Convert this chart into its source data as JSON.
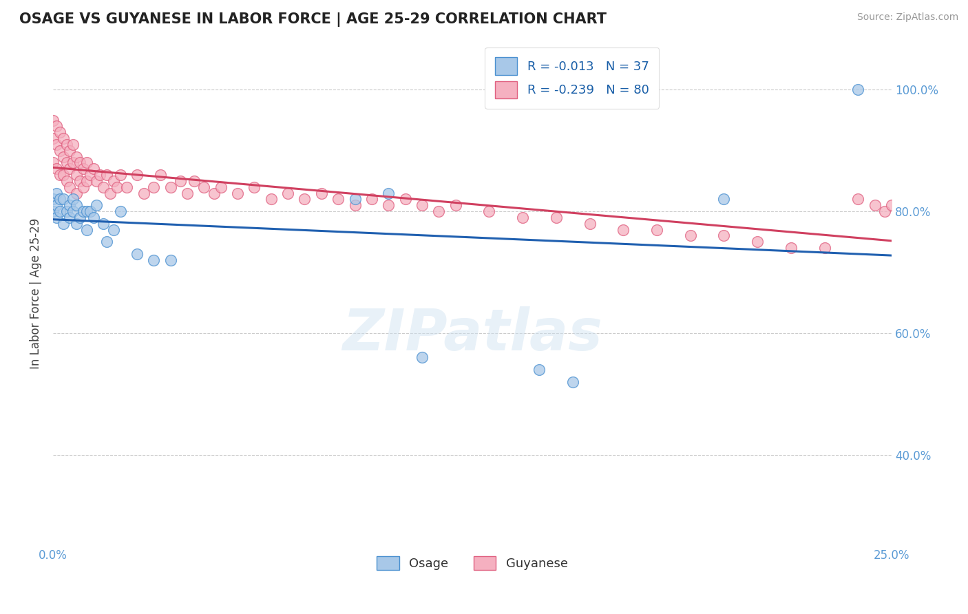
{
  "title": "OSAGE VS GUYANESE IN LABOR FORCE | AGE 25-29 CORRELATION CHART",
  "source": "Source: ZipAtlas.com",
  "ylabel": "In Labor Force | Age 25-29",
  "xlim": [
    0.0,
    0.25
  ],
  "ylim": [
    0.25,
    1.08
  ],
  "ytick_labels": [
    "40.0%",
    "60.0%",
    "80.0%",
    "100.0%"
  ],
  "ytick_values": [
    0.4,
    0.6,
    0.8,
    1.0
  ],
  "legend_r_osage": "R = -0.013",
  "legend_n_osage": "N = 37",
  "legend_r_guyanese": "R = -0.239",
  "legend_n_guyanese": "N = 80",
  "osage_color": "#a8c8e8",
  "guyanese_color": "#f5b0c0",
  "osage_edge_color": "#4a90d0",
  "guyanese_edge_color": "#e06080",
  "osage_line_color": "#2060b0",
  "guyanese_line_color": "#d04060",
  "watermark": "ZIPatlas",
  "osage_x": [
    0.0,
    0.0,
    0.001,
    0.001,
    0.001,
    0.002,
    0.002,
    0.003,
    0.003,
    0.004,
    0.005,
    0.005,
    0.006,
    0.006,
    0.007,
    0.007,
    0.008,
    0.009,
    0.01,
    0.01,
    0.011,
    0.012,
    0.013,
    0.015,
    0.016,
    0.018,
    0.02,
    0.025,
    0.03,
    0.035,
    0.09,
    0.1,
    0.11,
    0.145,
    0.155,
    0.2,
    0.24
  ],
  "osage_y": [
    0.8,
    0.82,
    0.81,
    0.79,
    0.83,
    0.8,
    0.82,
    0.78,
    0.82,
    0.8,
    0.81,
    0.79,
    0.8,
    0.82,
    0.78,
    0.81,
    0.79,
    0.8,
    0.77,
    0.8,
    0.8,
    0.79,
    0.81,
    0.78,
    0.75,
    0.77,
    0.8,
    0.73,
    0.72,
    0.72,
    0.82,
    0.83,
    0.56,
    0.54,
    0.52,
    0.82,
    1.0
  ],
  "guyanese_x": [
    0.0,
    0.0,
    0.0,
    0.001,
    0.001,
    0.001,
    0.002,
    0.002,
    0.002,
    0.003,
    0.003,
    0.003,
    0.004,
    0.004,
    0.004,
    0.005,
    0.005,
    0.005,
    0.006,
    0.006,
    0.007,
    0.007,
    0.007,
    0.008,
    0.008,
    0.009,
    0.009,
    0.01,
    0.01,
    0.011,
    0.012,
    0.013,
    0.014,
    0.015,
    0.016,
    0.017,
    0.018,
    0.019,
    0.02,
    0.022,
    0.025,
    0.027,
    0.03,
    0.032,
    0.035,
    0.038,
    0.04,
    0.042,
    0.045,
    0.048,
    0.05,
    0.055,
    0.06,
    0.065,
    0.07,
    0.075,
    0.08,
    0.085,
    0.09,
    0.095,
    0.1,
    0.105,
    0.11,
    0.115,
    0.12,
    0.13,
    0.14,
    0.15,
    0.16,
    0.17,
    0.18,
    0.19,
    0.2,
    0.21,
    0.22,
    0.23,
    0.24,
    0.245,
    0.248,
    0.25
  ],
  "guyanese_y": [
    0.95,
    0.92,
    0.88,
    0.94,
    0.91,
    0.87,
    0.93,
    0.9,
    0.86,
    0.92,
    0.89,
    0.86,
    0.91,
    0.88,
    0.85,
    0.9,
    0.87,
    0.84,
    0.91,
    0.88,
    0.89,
    0.86,
    0.83,
    0.88,
    0.85,
    0.87,
    0.84,
    0.88,
    0.85,
    0.86,
    0.87,
    0.85,
    0.86,
    0.84,
    0.86,
    0.83,
    0.85,
    0.84,
    0.86,
    0.84,
    0.86,
    0.83,
    0.84,
    0.86,
    0.84,
    0.85,
    0.83,
    0.85,
    0.84,
    0.83,
    0.84,
    0.83,
    0.84,
    0.82,
    0.83,
    0.82,
    0.83,
    0.82,
    0.81,
    0.82,
    0.81,
    0.82,
    0.81,
    0.8,
    0.81,
    0.8,
    0.79,
    0.79,
    0.78,
    0.77,
    0.77,
    0.76,
    0.76,
    0.75,
    0.74,
    0.74,
    0.82,
    0.81,
    0.8,
    0.81
  ]
}
